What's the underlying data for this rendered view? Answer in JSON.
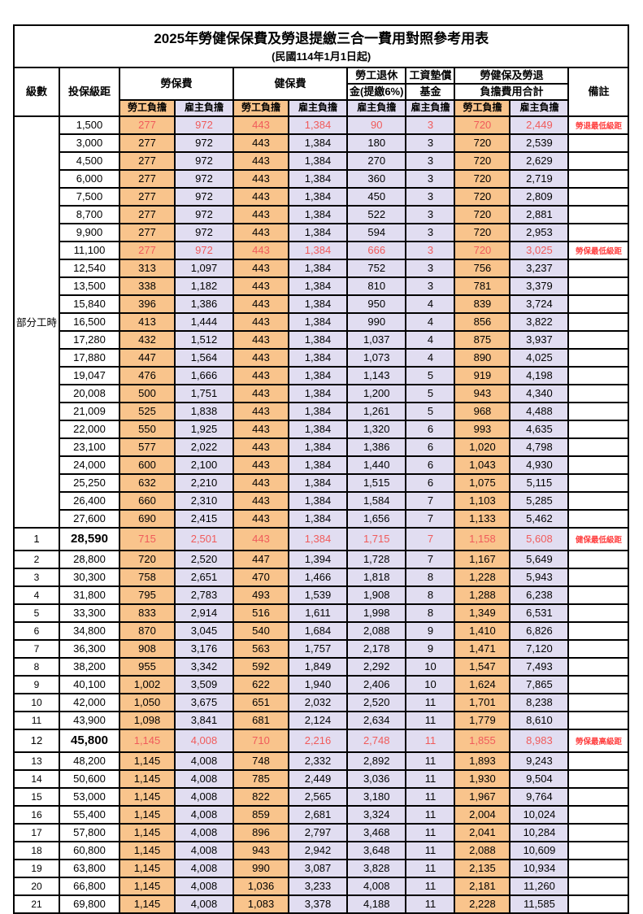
{
  "title": {
    "line1": "2025年勞健保保費及勞退提繳三合一費用對照參考用表",
    "line2": "(民國114年1月1日起)"
  },
  "header": {
    "level": "級數",
    "bracket": "投保級距",
    "labor_ins": "勞保費",
    "health_ins": "健保費",
    "pension_line1": "勞工退休",
    "pension_line2": "金(提繳6%)",
    "fund_line1": "工資墊償",
    "fund_line2": "基金",
    "total_line1": "勞健保及勞退",
    "total_line2": "負擔費用合計",
    "remark": "備註",
    "employee": "勞工負擔",
    "employer": "雇主負擔"
  },
  "part_time_label": "部分工時",
  "colors": {
    "employee_fill": "#F9C48C",
    "employer_fill": "#E1DDF1",
    "red_value": "#F05B5B",
    "red_remark": "#FF4040",
    "border": "#000000"
  },
  "rows": [
    {
      "level": "",
      "bracket": "1,500",
      "v": [
        "277",
        "972",
        "443",
        "1,384",
        "90",
        "3",
        "720",
        "2,449"
      ],
      "remark": "勞退最低級距",
      "red": true,
      "tall": false,
      "group_start": true
    },
    {
      "level": "",
      "bracket": "3,000",
      "v": [
        "277",
        "972",
        "443",
        "1,384",
        "180",
        "3",
        "720",
        "2,539"
      ],
      "remark": "",
      "red": false,
      "tall": false
    },
    {
      "level": "",
      "bracket": "4,500",
      "v": [
        "277",
        "972",
        "443",
        "1,384",
        "270",
        "3",
        "720",
        "2,629"
      ],
      "remark": "",
      "red": false,
      "tall": false
    },
    {
      "level": "",
      "bracket": "6,000",
      "v": [
        "277",
        "972",
        "443",
        "1,384",
        "360",
        "3",
        "720",
        "2,719"
      ],
      "remark": "",
      "red": false,
      "tall": false
    },
    {
      "level": "",
      "bracket": "7,500",
      "v": [
        "277",
        "972",
        "443",
        "1,384",
        "450",
        "3",
        "720",
        "2,809"
      ],
      "remark": "",
      "red": false,
      "tall": false
    },
    {
      "level": "",
      "bracket": "8,700",
      "v": [
        "277",
        "972",
        "443",
        "1,384",
        "522",
        "3",
        "720",
        "2,881"
      ],
      "remark": "",
      "red": false,
      "tall": false
    },
    {
      "level": "",
      "bracket": "9,900",
      "v": [
        "277",
        "972",
        "443",
        "1,384",
        "594",
        "3",
        "720",
        "2,953"
      ],
      "remark": "",
      "red": false,
      "tall": false
    },
    {
      "level": "",
      "bracket": "11,100",
      "v": [
        "277",
        "972",
        "443",
        "1,384",
        "666",
        "3",
        "720",
        "3,025"
      ],
      "remark": "勞保最低級距",
      "red": true,
      "tall": false
    },
    {
      "level": "",
      "bracket": "12,540",
      "v": [
        "313",
        "1,097",
        "443",
        "1,384",
        "752",
        "3",
        "756",
        "3,237"
      ],
      "remark": "",
      "red": false,
      "tall": false
    },
    {
      "level": "",
      "bracket": "13,500",
      "v": [
        "338",
        "1,182",
        "443",
        "1,384",
        "810",
        "3",
        "781",
        "3,379"
      ],
      "remark": "",
      "red": false,
      "tall": false
    },
    {
      "level": "",
      "bracket": "15,840",
      "v": [
        "396",
        "1,386",
        "443",
        "1,384",
        "950",
        "4",
        "839",
        "3,724"
      ],
      "remark": "",
      "red": false,
      "tall": false
    },
    {
      "level": "",
      "bracket": "16,500",
      "v": [
        "413",
        "1,444",
        "443",
        "1,384",
        "990",
        "4",
        "856",
        "3,822"
      ],
      "remark": "",
      "red": false,
      "tall": false
    },
    {
      "level": "",
      "bracket": "17,280",
      "v": [
        "432",
        "1,512",
        "443",
        "1,384",
        "1,037",
        "4",
        "875",
        "3,937"
      ],
      "remark": "",
      "red": false,
      "tall": false
    },
    {
      "level": "",
      "bracket": "17,880",
      "v": [
        "447",
        "1,564",
        "443",
        "1,384",
        "1,073",
        "4",
        "890",
        "4,025"
      ],
      "remark": "",
      "red": false,
      "tall": false
    },
    {
      "level": "",
      "bracket": "19,047",
      "v": [
        "476",
        "1,666",
        "443",
        "1,384",
        "1,143",
        "5",
        "919",
        "4,198"
      ],
      "remark": "",
      "red": false,
      "tall": false
    },
    {
      "level": "",
      "bracket": "20,008",
      "v": [
        "500",
        "1,751",
        "443",
        "1,384",
        "1,200",
        "5",
        "943",
        "4,340"
      ],
      "remark": "",
      "red": false,
      "tall": false
    },
    {
      "level": "",
      "bracket": "21,009",
      "v": [
        "525",
        "1,838",
        "443",
        "1,384",
        "1,261",
        "5",
        "968",
        "4,488"
      ],
      "remark": "",
      "red": false,
      "tall": false
    },
    {
      "level": "",
      "bracket": "22,000",
      "v": [
        "550",
        "1,925",
        "443",
        "1,384",
        "1,320",
        "6",
        "993",
        "4,635"
      ],
      "remark": "",
      "red": false,
      "tall": false
    },
    {
      "level": "",
      "bracket": "23,100",
      "v": [
        "577",
        "2,022",
        "443",
        "1,384",
        "1,386",
        "6",
        "1,020",
        "4,798"
      ],
      "remark": "",
      "red": false,
      "tall": false
    },
    {
      "level": "",
      "bracket": "24,000",
      "v": [
        "600",
        "2,100",
        "443",
        "1,384",
        "1,440",
        "6",
        "1,043",
        "4,930"
      ],
      "remark": "",
      "red": false,
      "tall": false
    },
    {
      "level": "",
      "bracket": "25,250",
      "v": [
        "632",
        "2,210",
        "443",
        "1,384",
        "1,515",
        "6",
        "1,075",
        "5,115"
      ],
      "remark": "",
      "red": false,
      "tall": false
    },
    {
      "level": "",
      "bracket": "26,400",
      "v": [
        "660",
        "2,310",
        "443",
        "1,384",
        "1,584",
        "7",
        "1,103",
        "5,285"
      ],
      "remark": "",
      "red": false,
      "tall": false
    },
    {
      "level": "",
      "bracket": "27,600",
      "v": [
        "690",
        "2,415",
        "443",
        "1,384",
        "1,656",
        "7",
        "1,133",
        "5,462"
      ],
      "remark": "",
      "red": false,
      "tall": false
    },
    {
      "level": "1",
      "bracket": "28,590",
      "v": [
        "715",
        "2,501",
        "443",
        "1,384",
        "1,715",
        "7",
        "1,158",
        "5,608"
      ],
      "remark": "健保最低級距",
      "red": true,
      "tall": true
    },
    {
      "level": "2",
      "bracket": "28,800",
      "v": [
        "720",
        "2,520",
        "447",
        "1,394",
        "1,728",
        "7",
        "1,167",
        "5,649"
      ],
      "remark": "",
      "red": false,
      "tall": false
    },
    {
      "level": "3",
      "bracket": "30,300",
      "v": [
        "758",
        "2,651",
        "470",
        "1,466",
        "1,818",
        "8",
        "1,228",
        "5,943"
      ],
      "remark": "",
      "red": false,
      "tall": false
    },
    {
      "level": "4",
      "bracket": "31,800",
      "v": [
        "795",
        "2,783",
        "493",
        "1,539",
        "1,908",
        "8",
        "1,288",
        "6,238"
      ],
      "remark": "",
      "red": false,
      "tall": false
    },
    {
      "level": "5",
      "bracket": "33,300",
      "v": [
        "833",
        "2,914",
        "516",
        "1,611",
        "1,998",
        "8",
        "1,349",
        "6,531"
      ],
      "remark": "",
      "red": false,
      "tall": false
    },
    {
      "level": "6",
      "bracket": "34,800",
      "v": [
        "870",
        "3,045",
        "540",
        "1,684",
        "2,088",
        "9",
        "1,410",
        "6,826"
      ],
      "remark": "",
      "red": false,
      "tall": false
    },
    {
      "level": "7",
      "bracket": "36,300",
      "v": [
        "908",
        "3,176",
        "563",
        "1,757",
        "2,178",
        "9",
        "1,471",
        "7,120"
      ],
      "remark": "",
      "red": false,
      "tall": false
    },
    {
      "level": "8",
      "bracket": "38,200",
      "v": [
        "955",
        "3,342",
        "592",
        "1,849",
        "2,292",
        "10",
        "1,547",
        "7,493"
      ],
      "remark": "",
      "red": false,
      "tall": false
    },
    {
      "level": "9",
      "bracket": "40,100",
      "v": [
        "1,002",
        "3,509",
        "622",
        "1,940",
        "2,406",
        "10",
        "1,624",
        "7,865"
      ],
      "remark": "",
      "red": false,
      "tall": false
    },
    {
      "level": "10",
      "bracket": "42,000",
      "v": [
        "1,050",
        "3,675",
        "651",
        "2,032",
        "2,520",
        "11",
        "1,701",
        "8,238"
      ],
      "remark": "",
      "red": false,
      "tall": false
    },
    {
      "level": "11",
      "bracket": "43,900",
      "v": [
        "1,098",
        "3,841",
        "681",
        "2,124",
        "2,634",
        "11",
        "1,779",
        "8,610"
      ],
      "remark": "",
      "red": false,
      "tall": false
    },
    {
      "level": "12",
      "bracket": "45,800",
      "v": [
        "1,145",
        "4,008",
        "710",
        "2,216",
        "2,748",
        "11",
        "1,855",
        "8,983"
      ],
      "remark": "勞保最高級距",
      "red": true,
      "tall": true
    },
    {
      "level": "13",
      "bracket": "48,200",
      "v": [
        "1,145",
        "4,008",
        "748",
        "2,332",
        "2,892",
        "11",
        "1,893",
        "9,243"
      ],
      "remark": "",
      "red": false,
      "tall": false
    },
    {
      "level": "14",
      "bracket": "50,600",
      "v": [
        "1,145",
        "4,008",
        "785",
        "2,449",
        "3,036",
        "11",
        "1,930",
        "9,504"
      ],
      "remark": "",
      "red": false,
      "tall": false
    },
    {
      "level": "15",
      "bracket": "53,000",
      "v": [
        "1,145",
        "4,008",
        "822",
        "2,565",
        "3,180",
        "11",
        "1,967",
        "9,764"
      ],
      "remark": "",
      "red": false,
      "tall": false
    },
    {
      "level": "16",
      "bracket": "55,400",
      "v": [
        "1,145",
        "4,008",
        "859",
        "2,681",
        "3,324",
        "11",
        "2,004",
        "10,024"
      ],
      "remark": "",
      "red": false,
      "tall": false
    },
    {
      "level": "17",
      "bracket": "57,800",
      "v": [
        "1,145",
        "4,008",
        "896",
        "2,797",
        "3,468",
        "11",
        "2,041",
        "10,284"
      ],
      "remark": "",
      "red": false,
      "tall": false
    },
    {
      "level": "18",
      "bracket": "60,800",
      "v": [
        "1,145",
        "4,008",
        "943",
        "2,942",
        "3,648",
        "11",
        "2,088",
        "10,609"
      ],
      "remark": "",
      "red": false,
      "tall": false
    },
    {
      "level": "19",
      "bracket": "63,800",
      "v": [
        "1,145",
        "4,008",
        "990",
        "3,087",
        "3,828",
        "11",
        "2,135",
        "10,934"
      ],
      "remark": "",
      "red": false,
      "tall": false
    },
    {
      "level": "20",
      "bracket": "66,800",
      "v": [
        "1,145",
        "4,008",
        "1,036",
        "3,233",
        "4,008",
        "11",
        "2,181",
        "11,260"
      ],
      "remark": "",
      "red": false,
      "tall": false
    },
    {
      "level": "21",
      "bracket": "69,800",
      "v": [
        "1,145",
        "4,008",
        "1,083",
        "3,378",
        "4,188",
        "11",
        "2,228",
        "11,585"
      ],
      "remark": "",
      "red": false,
      "tall": false
    }
  ]
}
